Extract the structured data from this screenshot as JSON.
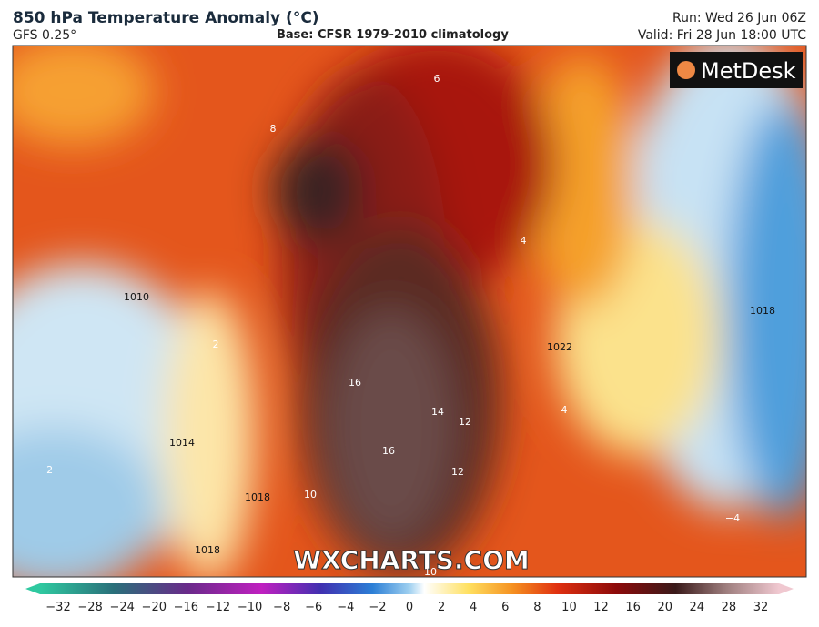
{
  "header": {
    "title": "850 hPa Temperature Anomaly (°C)",
    "model": "GFS 0.25°",
    "base": "Base: CFSR 1979-2010 climatology",
    "run": "Run: Wed 26 Jun 06Z",
    "valid": "Valid: Fri 28 Jun 18:00 UTC"
  },
  "logo": "MetDesk",
  "watermark": "WXCHARTS.COM",
  "map_labels": [
    "1010",
    "1014",
    "1018",
    "1018",
    "1022",
    "1018",
    "16",
    "16",
    "14",
    "12",
    "12",
    "10",
    "10",
    "8",
    "6",
    "4",
    "2",
    "−2",
    "−4",
    "4"
  ],
  "colorbar": {
    "ticks": [
      "−32",
      "−28",
      "−24",
      "−20",
      "−16",
      "−12",
      "−10",
      "−8",
      "−6",
      "−4",
      "−2",
      "0",
      "2",
      "4",
      "6",
      "8",
      "10",
      "12",
      "16",
      "20",
      "24",
      "28",
      "32"
    ]
  }
}
